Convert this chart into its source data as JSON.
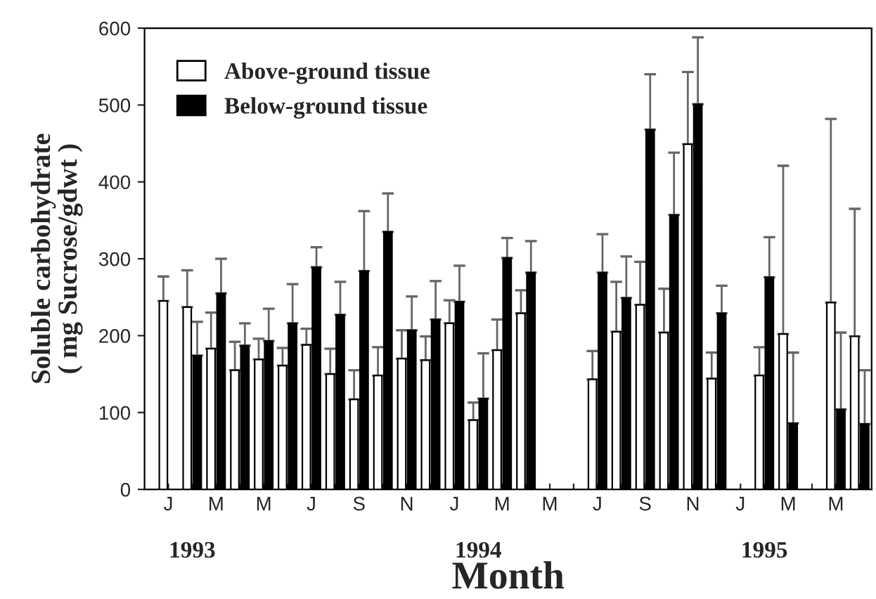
{
  "chart_data": {
    "type": "bar",
    "xlabel": "Month",
    "ylabel": "Soluble carbohydrate\n( mg Sucrose/gdwt )",
    "categories": [
      "J",
      null,
      "M",
      null,
      "M",
      null,
      "J",
      null,
      "S",
      null,
      "N",
      null,
      "J",
      null,
      "M",
      null,
      "M",
      null,
      "J",
      null,
      "S",
      null,
      "N",
      null,
      "J",
      null,
      "M",
      null,
      "M",
      null
    ],
    "series": [
      {
        "name": "Above-ground tissue",
        "color": "#ffffff",
        "values": [
          245,
          237,
          183,
          155,
          169,
          161,
          188,
          150,
          117,
          148,
          170,
          168,
          216,
          90,
          181,
          229,
          null,
          null,
          143,
          205,
          240,
          204,
          449,
          144,
          null,
          148,
          202,
          null,
          243,
          199
        ],
        "errors": [
          [
            245,
            277
          ],
          [
            237,
            285
          ],
          [
            183,
            230
          ],
          [
            155,
            192
          ],
          [
            169,
            196
          ],
          [
            161,
            184
          ],
          [
            188,
            209
          ],
          [
            150,
            183
          ],
          [
            117,
            155
          ],
          [
            148,
            185
          ],
          [
            170,
            207
          ],
          [
            168,
            199
          ],
          [
            216,
            246
          ],
          [
            90,
            113
          ],
          [
            181,
            221
          ],
          [
            229,
            259
          ],
          null,
          null,
          [
            143,
            180
          ],
          [
            205,
            270
          ],
          [
            240,
            296
          ],
          [
            204,
            261
          ],
          [
            449,
            543
          ],
          [
            144,
            178
          ],
          null,
          [
            148,
            185
          ],
          [
            202,
            421
          ],
          null,
          [
            243,
            482
          ],
          [
            199,
            365
          ]
        ]
      },
      {
        "name": "Below-ground tissue",
        "color": "#000000",
        "values": [
          null,
          174,
          255,
          187,
          193,
          216,
          289,
          227,
          284,
          335,
          207,
          221,
          244,
          118,
          301,
          282,
          null,
          null,
          282,
          249,
          468,
          357,
          501,
          229,
          null,
          276,
          86,
          null,
          104,
          85
        ],
        "errors": [
          null,
          [
            174,
            218
          ],
          [
            255,
            300
          ],
          [
            187,
            216
          ],
          [
            193,
            235
          ],
          [
            216,
            267
          ],
          [
            289,
            315
          ],
          [
            227,
            270
          ],
          [
            284,
            362
          ],
          [
            335,
            385
          ],
          [
            207,
            251
          ],
          [
            221,
            271
          ],
          [
            244,
            291
          ],
          [
            118,
            177
          ],
          [
            301,
            327
          ],
          [
            282,
            323
          ],
          null,
          null,
          [
            282,
            332
          ],
          [
            249,
            303
          ],
          [
            468,
            540
          ],
          [
            357,
            438
          ],
          [
            501,
            588
          ],
          [
            229,
            265
          ],
          null,
          [
            276,
            328
          ],
          [
            86,
            178
          ],
          null,
          [
            104,
            204
          ],
          [
            85,
            155
          ]
        ]
      }
    ],
    "ylim": [
      0,
      600
    ],
    "yticks": [
      0,
      100,
      200,
      300,
      400,
      500,
      600
    ],
    "legend": "top left",
    "grid": false,
    "annotations": [
      "1993",
      "1994",
      "1995"
    ]
  }
}
